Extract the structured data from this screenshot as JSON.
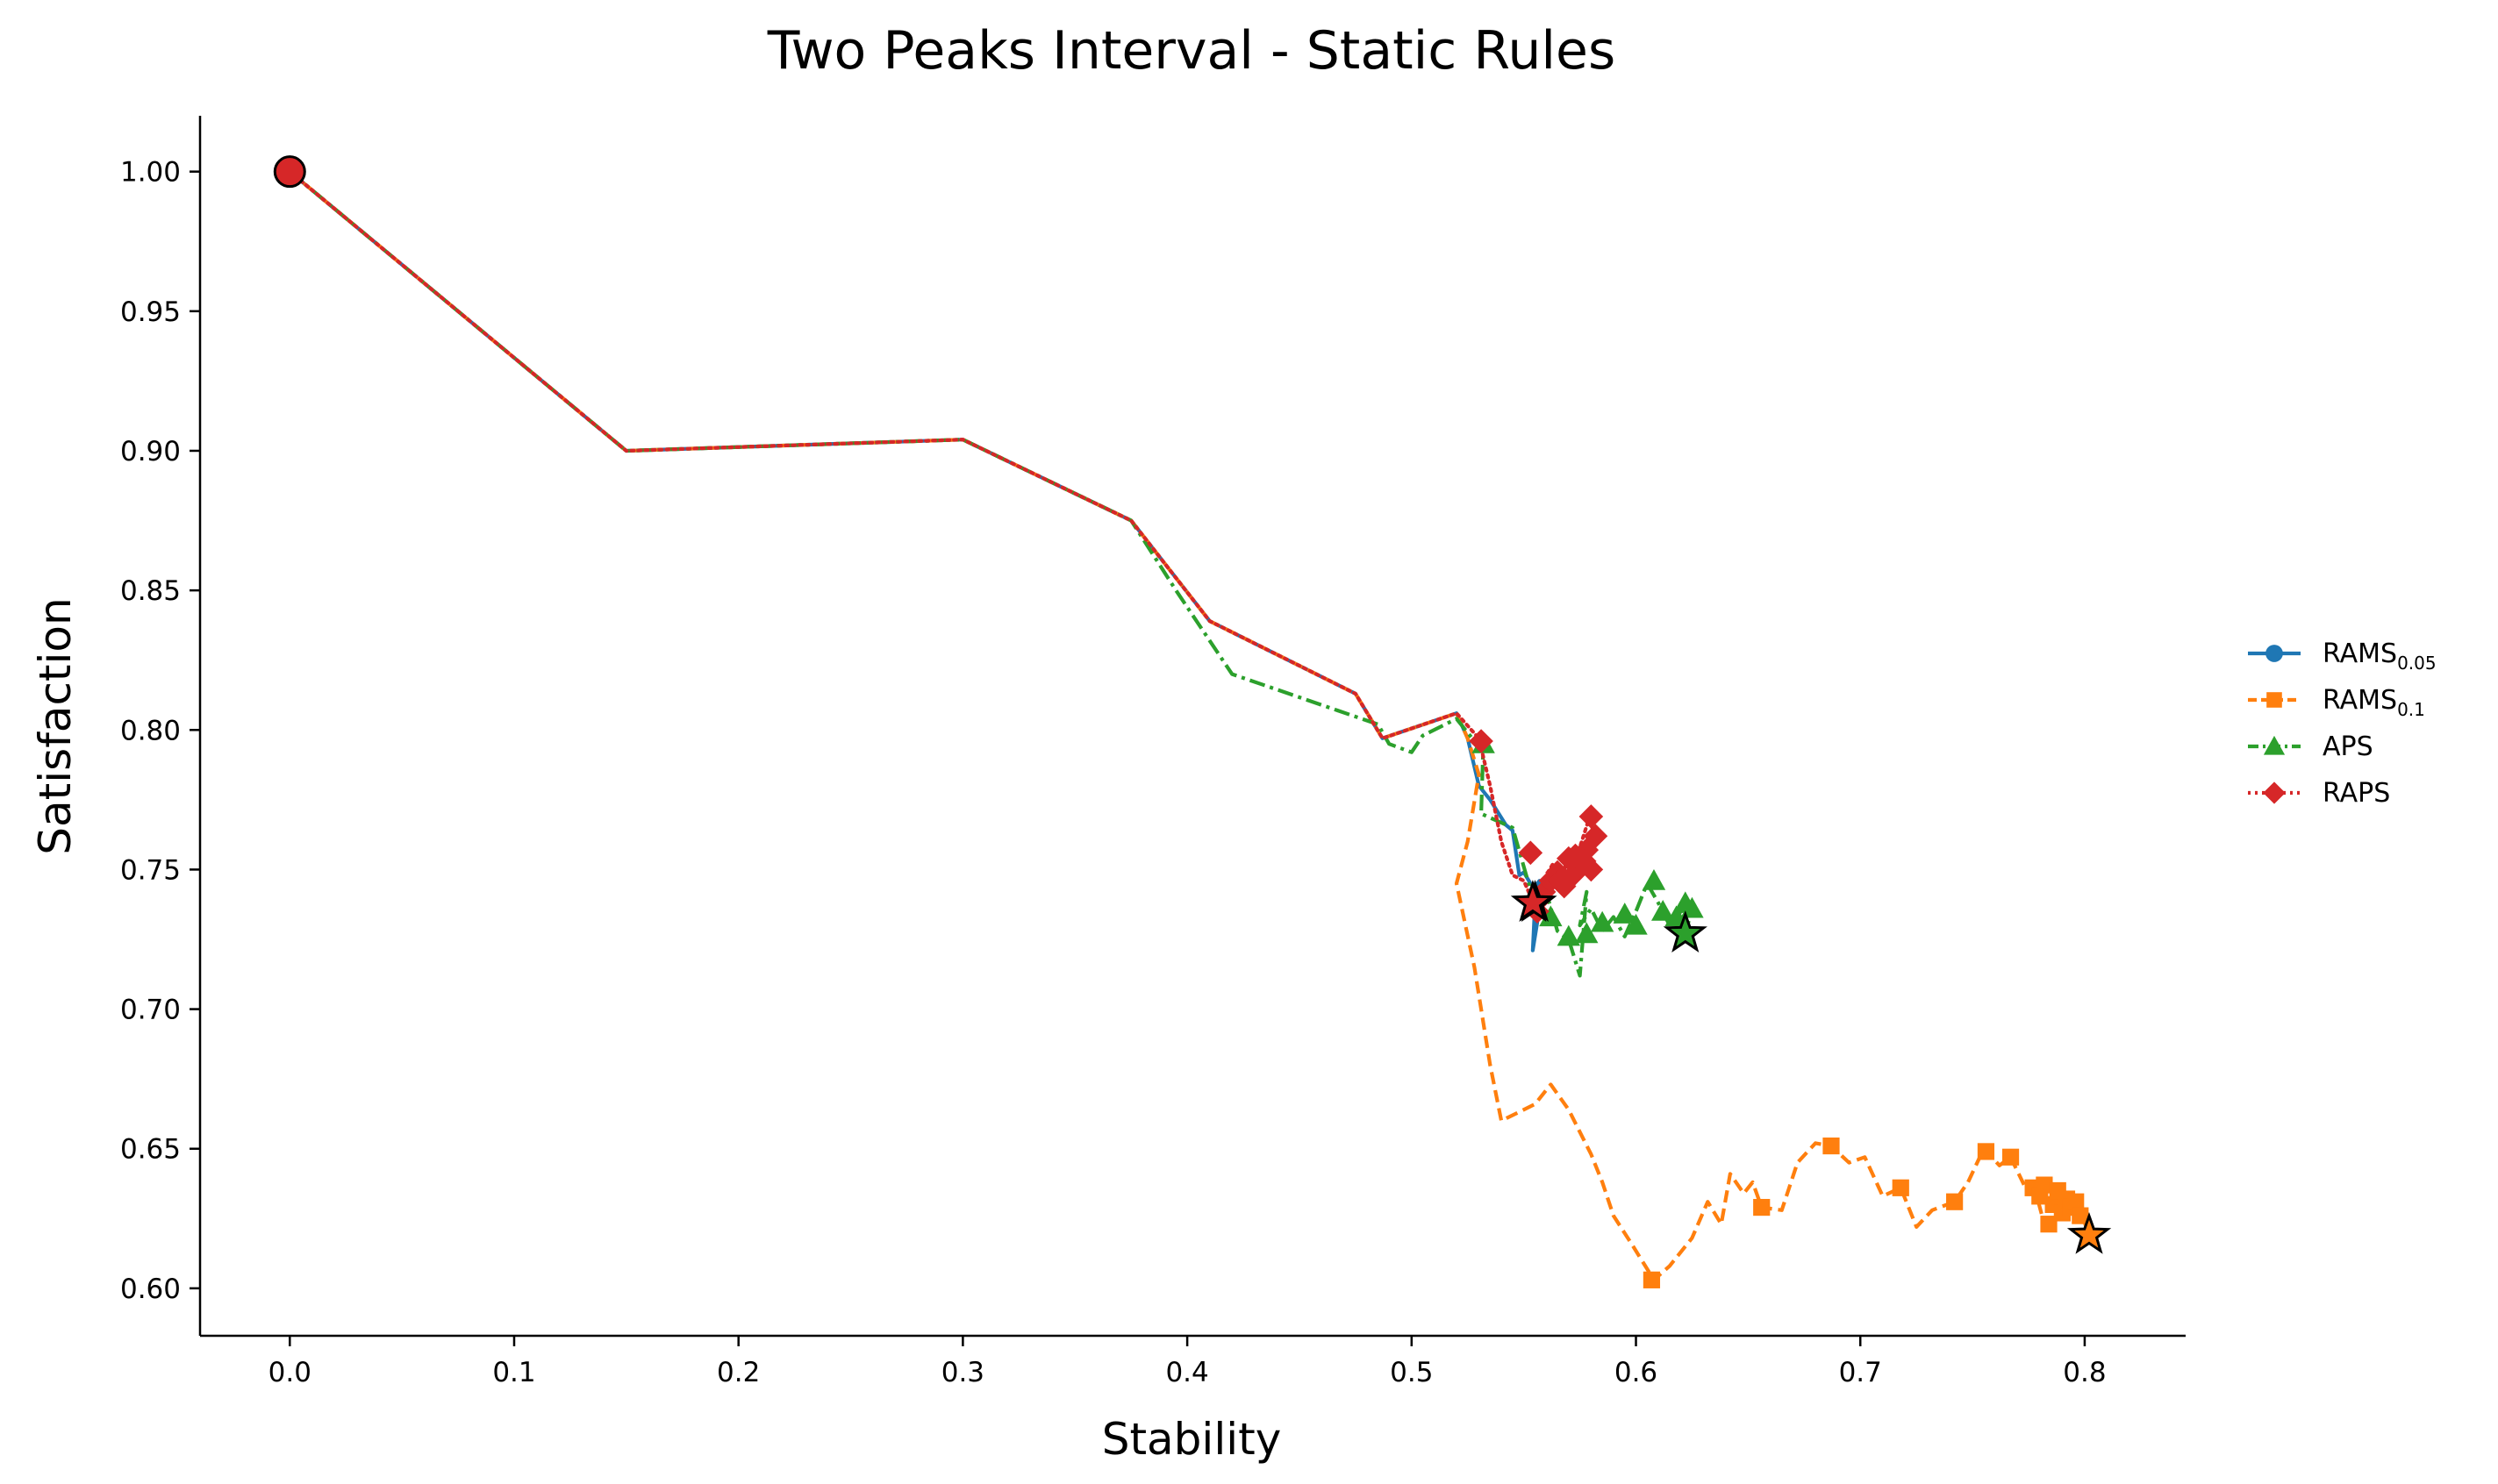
{
  "chart_data": {
    "type": "line",
    "title": "Two Peaks Interval - Static Rules",
    "xlabel": "Stability",
    "ylabel": "Satisfaction",
    "xlim": [
      -0.04,
      0.845
    ],
    "ylim": [
      0.583,
      1.02
    ],
    "xticks": [
      0.0,
      0.1,
      0.2,
      0.3,
      0.4,
      0.5,
      0.6,
      0.7,
      0.8
    ],
    "xtick_labels": [
      "0.0",
      "0.1",
      "0.2",
      "0.3",
      "0.4",
      "0.5",
      "0.6",
      "0.7",
      "0.8"
    ],
    "yticks": [
      0.6,
      0.65,
      0.7,
      0.75,
      0.8,
      0.85,
      0.9,
      0.95,
      1.0
    ],
    "ytick_labels": [
      "0.60",
      "0.65",
      "0.70",
      "0.75",
      "0.80",
      "0.85",
      "0.90",
      "0.95",
      "1.00"
    ],
    "grid": false,
    "legend_position": "right",
    "start_point": {
      "x": 0.0,
      "y": 1.0,
      "color": "#d62728"
    },
    "series": [
      {
        "name": "RAMS",
        "subscript": "0.05",
        "color": "#1f77b4",
        "dash": "solid",
        "marker": "circle",
        "x": [
          0.0,
          0.15,
          0.3,
          0.375,
          0.41,
          0.475,
          0.487,
          0.52,
          0.525,
          0.53,
          0.535,
          0.542,
          0.545,
          0.548,
          0.55,
          0.553,
          0.555,
          0.557,
          0.556,
          0.554,
          0.555
        ],
        "y": [
          1.0,
          0.9,
          0.904,
          0.875,
          0.839,
          0.813,
          0.797,
          0.806,
          0.797,
          0.78,
          0.775,
          0.766,
          0.764,
          0.748,
          0.749,
          0.745,
          0.744,
          0.746,
          0.731,
          0.721,
          0.738
        ],
        "marker_x": [],
        "marker_y": [],
        "final": {
          "x": 0.555,
          "y": 0.738
        }
      },
      {
        "name": "RAMS",
        "subscript": "0.1",
        "color": "#ff7f0e",
        "dash": "dashed",
        "marker": "square",
        "x": [
          0.0,
          0.15,
          0.3,
          0.375,
          0.41,
          0.475,
          0.487,
          0.52,
          0.525,
          0.53,
          0.525,
          0.52,
          0.528,
          0.535,
          0.54,
          0.555,
          0.562,
          0.57,
          0.58,
          0.585,
          0.59,
          0.598,
          0.608,
          0.615,
          0.625,
          0.632,
          0.638,
          0.642,
          0.648,
          0.652,
          0.656,
          0.665,
          0.672,
          0.68,
          0.687,
          0.695,
          0.702,
          0.71,
          0.718,
          0.725,
          0.732,
          0.742,
          0.748,
          0.755,
          0.762,
          0.767,
          0.773,
          0.778,
          0.782,
          0.786,
          0.79,
          0.794,
          0.798,
          0.802
        ],
        "y": [
          1.0,
          0.9,
          0.904,
          0.875,
          0.839,
          0.813,
          0.797,
          0.806,
          0.797,
          0.784,
          0.76,
          0.745,
          0.715,
          0.68,
          0.66,
          0.666,
          0.673,
          0.664,
          0.648,
          0.638,
          0.626,
          0.616,
          0.603,
          0.608,
          0.618,
          0.631,
          0.623,
          0.641,
          0.634,
          0.638,
          0.629,
          0.628,
          0.645,
          0.652,
          0.651,
          0.645,
          0.647,
          0.633,
          0.636,
          0.622,
          0.628,
          0.631,
          0.638,
          0.65,
          0.644,
          0.647,
          0.637,
          0.635,
          0.623,
          0.637,
          0.628,
          0.632,
          0.628,
          0.619
        ],
        "marker_x": [
          0.607,
          0.656,
          0.687,
          0.718,
          0.742,
          0.756,
          0.767,
          0.777,
          0.78,
          0.782,
          0.784,
          0.786,
          0.788,
          0.79,
          0.792,
          0.794,
          0.796,
          0.798
        ],
        "marker_y": [
          0.603,
          0.629,
          0.651,
          0.636,
          0.631,
          0.649,
          0.647,
          0.636,
          0.633,
          0.637,
          0.623,
          0.63,
          0.635,
          0.627,
          0.632,
          0.629,
          0.631,
          0.626
        ],
        "final": {
          "x": 0.802,
          "y": 0.619
        }
      },
      {
        "name": "APS",
        "subscript": "",
        "color": "#2ca02c",
        "dash": "dashdot",
        "marker": "triangle",
        "x": [
          0.0,
          0.15,
          0.3,
          0.375,
          0.395,
          0.42,
          0.485,
          0.49,
          0.5,
          0.505,
          0.52,
          0.527,
          0.532,
          0.531,
          0.545,
          0.555,
          0.56,
          0.565,
          0.57,
          0.575,
          0.578,
          0.575,
          0.58,
          0.585,
          0.59,
          0.595,
          0.6,
          0.605,
          0.61,
          0.615,
          0.62,
          0.625,
          0.622
        ],
        "y": [
          1.0,
          0.9,
          0.904,
          0.875,
          0.85,
          0.82,
          0.802,
          0.795,
          0.792,
          0.798,
          0.804,
          0.797,
          0.795,
          0.77,
          0.765,
          0.737,
          0.742,
          0.728,
          0.725,
          0.712,
          0.742,
          0.73,
          0.736,
          0.728,
          0.733,
          0.726,
          0.735,
          0.745,
          0.738,
          0.73,
          0.735,
          0.736,
          0.727
        ],
        "marker_x": [
          0.532,
          0.562,
          0.57,
          0.578,
          0.585,
          0.595,
          0.6,
          0.608,
          0.612,
          0.618,
          0.622,
          0.625
        ],
        "marker_y": [
          0.795,
          0.733,
          0.726,
          0.727,
          0.731,
          0.734,
          0.73,
          0.746,
          0.735,
          0.733,
          0.738,
          0.736
        ],
        "final": {
          "x": 0.622,
          "y": 0.727
        }
      },
      {
        "name": "RAPS",
        "subscript": "",
        "color": "#d62728",
        "dash": "dotted",
        "marker": "diamond",
        "x": [
          0.0,
          0.15,
          0.3,
          0.375,
          0.41,
          0.475,
          0.487,
          0.52,
          0.53,
          0.535,
          0.54,
          0.545,
          0.55,
          0.556,
          0.558,
          0.56,
          0.563,
          0.566,
          0.57,
          0.573,
          0.576,
          0.58,
          0.582,
          0.579,
          0.575,
          0.566,
          0.56,
          0.554
        ],
        "y": [
          1.0,
          0.9,
          0.904,
          0.875,
          0.839,
          0.813,
          0.797,
          0.806,
          0.797,
          0.78,
          0.76,
          0.748,
          0.746,
          0.735,
          0.74,
          0.748,
          0.752,
          0.745,
          0.755,
          0.748,
          0.753,
          0.756,
          0.762,
          0.768,
          0.758,
          0.748,
          0.742,
          0.738
        ],
        "marker_x": [
          0.531,
          0.553,
          0.556,
          0.559,
          0.562,
          0.565,
          0.568,
          0.57,
          0.572,
          0.575,
          0.578,
          0.58,
          0.582,
          0.58,
          0.577,
          0.573,
          0.566,
          0.558
        ],
        "marker_y": [
          0.796,
          0.756,
          0.735,
          0.742,
          0.746,
          0.749,
          0.744,
          0.754,
          0.748,
          0.751,
          0.757,
          0.769,
          0.762,
          0.75,
          0.753,
          0.755,
          0.746,
          0.74
        ],
        "final": {
          "x": 0.554,
          "y": 0.738
        }
      }
    ]
  }
}
